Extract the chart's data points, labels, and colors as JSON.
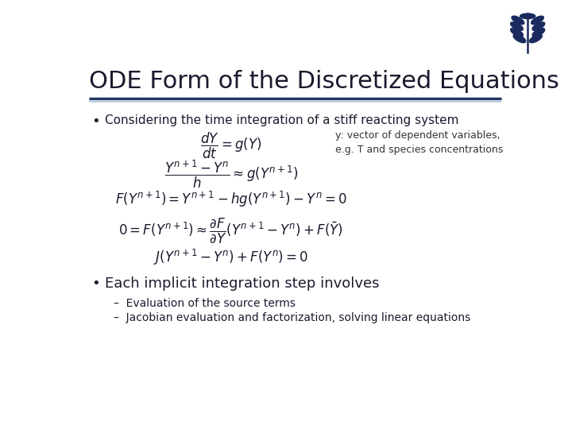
{
  "title": "ODE Form of the Discretized Equations",
  "title_fontsize": 22,
  "title_color": "#1a1a2e",
  "background_color": "#ffffff",
  "line_color_dark": "#1f3864",
  "line_color_light": "#b0c4de",
  "bullet1": "Considering the time integration of a stiff reacting system",
  "annotation_line1": "y: vector of dependent variables,",
  "annotation_line2": "e.g. T and species concentrations",
  "bullet2": "Each implicit integration step involves",
  "sub1": "Evaluation of the source terms",
  "sub2": "Jacobian evaluation and factorization, solving linear equations",
  "text_color": "#1a1a2e",
  "eq_color": "#1a1a2e",
  "annotation_color": "#333333"
}
